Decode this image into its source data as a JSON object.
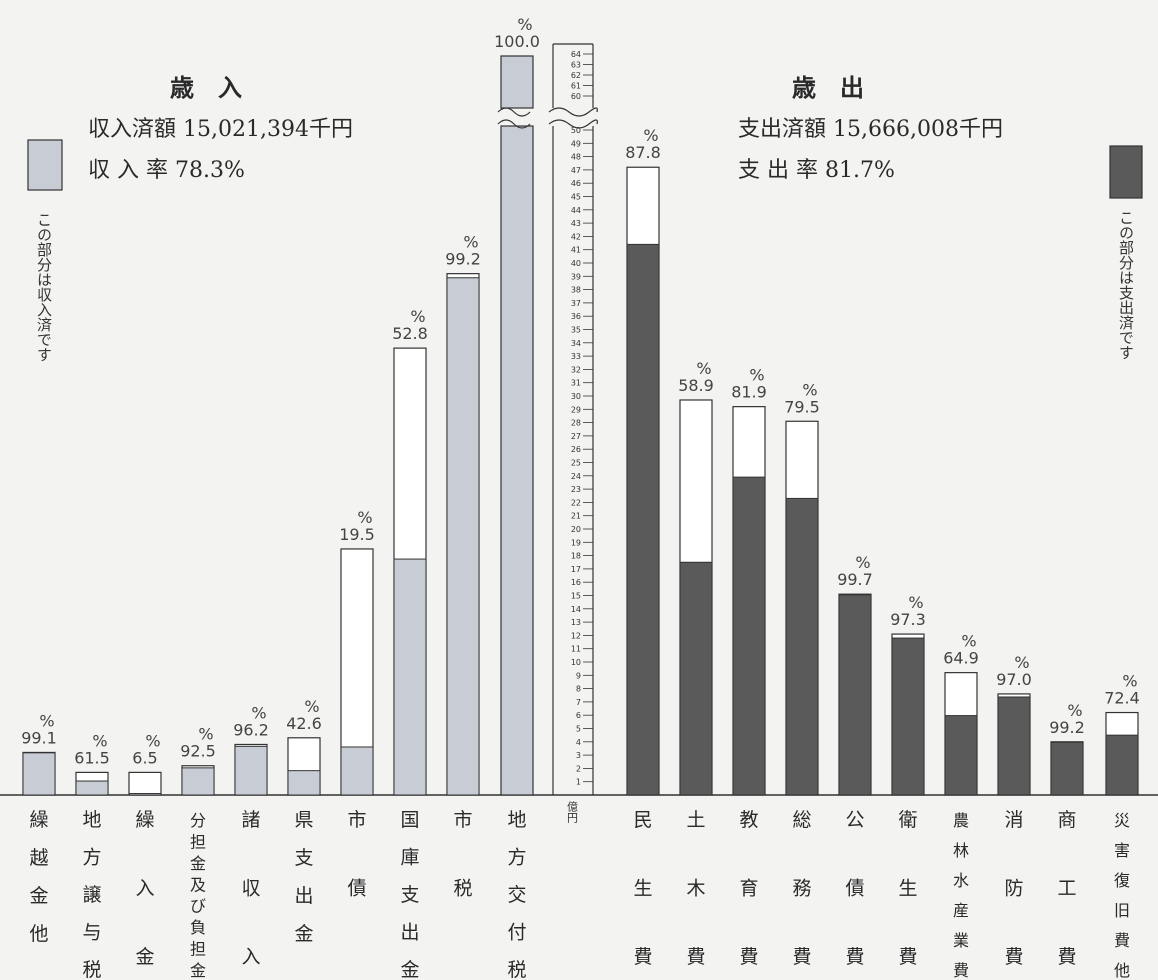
{
  "colors": {
    "revenue_fill": "#c8ccd4",
    "expenditure_fill": "#5a5a5a",
    "unfilled": "#ffffff",
    "outline": "#333333",
    "background": "#f3f3f1"
  },
  "revenue": {
    "heading": "歳　入",
    "amount_text": "収入済額 15,021,394千円",
    "rate_text": "収 入 率 78.3%",
    "legend_note": "この部分は収入済です"
  },
  "expenditure": {
    "heading": "歳　出",
    "amount_text": "支出済額 15,666,008千円",
    "rate_text": "支 出 率 81.7%",
    "legend_note": "この部分は支出済です"
  },
  "chart_data": {
    "type": "bar",
    "unit": "億円",
    "percent_symbol": "%",
    "scale_ticks_lower": [
      1,
      2,
      3,
      4,
      5,
      6,
      7,
      8,
      9,
      10,
      11,
      12,
      13,
      14,
      15,
      16,
      17,
      18,
      19,
      20,
      21,
      22,
      23,
      24,
      25,
      26,
      27,
      28,
      29,
      30,
      31,
      32,
      33,
      34,
      35,
      36,
      37,
      38,
      39,
      40,
      41,
      42,
      43,
      44,
      45,
      46,
      47,
      48,
      49,
      50
    ],
    "scale_ticks_upper": [
      60,
      61,
      62,
      63,
      64
    ],
    "ylim": [
      0,
      64
    ],
    "revenue_items": [
      {
        "category": "繰越金他",
        "budget": 3.2,
        "actual": 3.17,
        "rate": "99.1"
      },
      {
        "category": "地方譲与税",
        "budget": 1.7,
        "actual": 1.05,
        "rate": "61.5"
      },
      {
        "category": "繰入金",
        "budget": 1.7,
        "actual": 0.11,
        "rate": "6.5"
      },
      {
        "category": "分担金及び負担金",
        "budget": 2.2,
        "actual": 2.04,
        "rate": "92.5"
      },
      {
        "category": "諸収入",
        "budget": 3.8,
        "actual": 3.66,
        "rate": "96.2"
      },
      {
        "category": "県支出金",
        "budget": 4.3,
        "actual": 1.83,
        "rate": "42.6"
      },
      {
        "category": "市債",
        "budget": 18.5,
        "actual": 3.61,
        "rate": "19.5"
      },
      {
        "category": "国庫支出金",
        "budget": 33.6,
        "actual": 17.74,
        "rate": "52.8"
      },
      {
        "category": "市税",
        "budget": 39.2,
        "actual": 38.89,
        "rate": "99.2"
      },
      {
        "category": "地方交付税",
        "budget": 64.0,
        "actual": 64.0,
        "rate": "100.0",
        "broken_axis": true
      }
    ],
    "expenditure_items": [
      {
        "category": "民生費",
        "budget": 47.2,
        "actual": 41.4,
        "rate": "87.8"
      },
      {
        "category": "土木費",
        "budget": 29.7,
        "actual": 17.5,
        "rate": "58.9"
      },
      {
        "category": "教育費",
        "budget": 29.2,
        "actual": 23.9,
        "rate": "81.9"
      },
      {
        "category": "総務費",
        "budget": 28.1,
        "actual": 22.3,
        "rate": "79.5"
      },
      {
        "category": "公債費",
        "budget": 15.1,
        "actual": 15.05,
        "rate": "99.7"
      },
      {
        "category": "衛生費",
        "budget": 12.1,
        "actual": 11.8,
        "rate": "97.3"
      },
      {
        "category": "農林水産業費",
        "budget": 9.2,
        "actual": 5.97,
        "rate": "64.9"
      },
      {
        "category": "消防費",
        "budget": 7.6,
        "actual": 7.37,
        "rate": "97.0"
      },
      {
        "category": "商工費",
        "budget": 4.0,
        "actual": 3.97,
        "rate": "99.2"
      },
      {
        "category": "災害復旧費他",
        "budget": 6.2,
        "actual": 4.5,
        "rate": "72.4"
      }
    ]
  }
}
